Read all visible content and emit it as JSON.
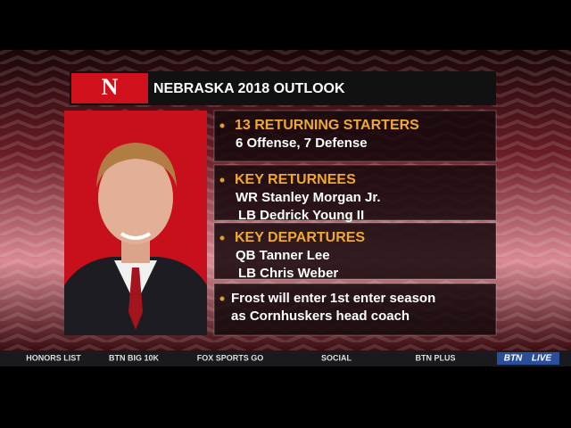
{
  "header": {
    "logo": "N",
    "title": "NEBRASKA 2018 OUTLOOK"
  },
  "sections": [
    {
      "heading": "13 RETURNING STARTERS",
      "lines": [
        "6 Offense, 7 Defense"
      ]
    },
    {
      "heading": "KEY RETURNEES",
      "lines": [
        "WR Stanley Morgan Jr.",
        "LB Dedrick Young II"
      ]
    },
    {
      "heading": "KEY DEPARTURES",
      "lines": [
        "QB Tanner Lee",
        "LB Chris Weber"
      ]
    },
    {
      "heading": null,
      "lines": [
        "Frost will enter 1st enter season",
        "as Cornhuskers head coach"
      ]
    }
  ],
  "ticker": {
    "items": [
      "HONORS LIST",
      "BTN BIG 10K",
      "FOX SPORTS GO",
      "SOCIAL",
      "BTN PLUS"
    ],
    "logo": [
      "BTN",
      "LIVE"
    ]
  }
}
